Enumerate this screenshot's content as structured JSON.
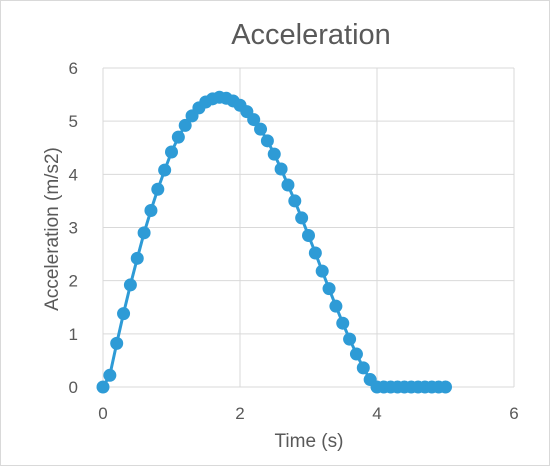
{
  "chart_data": {
    "type": "scatter",
    "title": "Acceleration",
    "xlabel": "Time (s)",
    "ylabel": "Acceleration (m/s2)",
    "xlim": [
      0,
      6
    ],
    "ylim": [
      0,
      6
    ],
    "x_ticks": [
      "0",
      "2",
      "4",
      "6"
    ],
    "y_ticks": [
      "0",
      "1",
      "2",
      "3",
      "4",
      "5",
      "6"
    ],
    "grid": true,
    "series_color": "#2e9bd6",
    "series": [
      {
        "x": [
          0,
          0.1,
          0.2,
          0.3,
          0.4,
          0.5,
          0.6,
          0.7,
          0.8,
          0.9,
          1.0,
          1.1,
          1.2,
          1.3,
          1.4,
          1.5,
          1.6,
          1.7,
          1.8,
          1.9,
          2.0,
          2.1,
          2.2,
          2.3,
          2.4,
          2.5,
          2.6,
          2.7,
          2.8,
          2.9,
          3.0,
          3.1,
          3.2,
          3.3,
          3.4,
          3.5,
          3.6,
          3.7,
          3.8,
          3.9,
          4.0,
          4.1,
          4.2,
          4.3,
          4.4,
          4.5,
          4.6,
          4.7,
          4.8,
          4.9,
          5.0
        ],
        "values": [
          0,
          0.22,
          0.82,
          1.38,
          1.92,
          2.42,
          2.9,
          3.32,
          3.72,
          4.08,
          4.42,
          4.7,
          4.92,
          5.1,
          5.25,
          5.36,
          5.42,
          5.45,
          5.43,
          5.38,
          5.3,
          5.18,
          5.03,
          4.85,
          4.63,
          4.38,
          4.1,
          3.8,
          3.5,
          3.18,
          2.85,
          2.52,
          2.18,
          1.85,
          1.52,
          1.2,
          0.9,
          0.62,
          0.36,
          0.14,
          0,
          0,
          0,
          0,
          0,
          0,
          0,
          0,
          0,
          0,
          0
        ]
      }
    ]
  }
}
